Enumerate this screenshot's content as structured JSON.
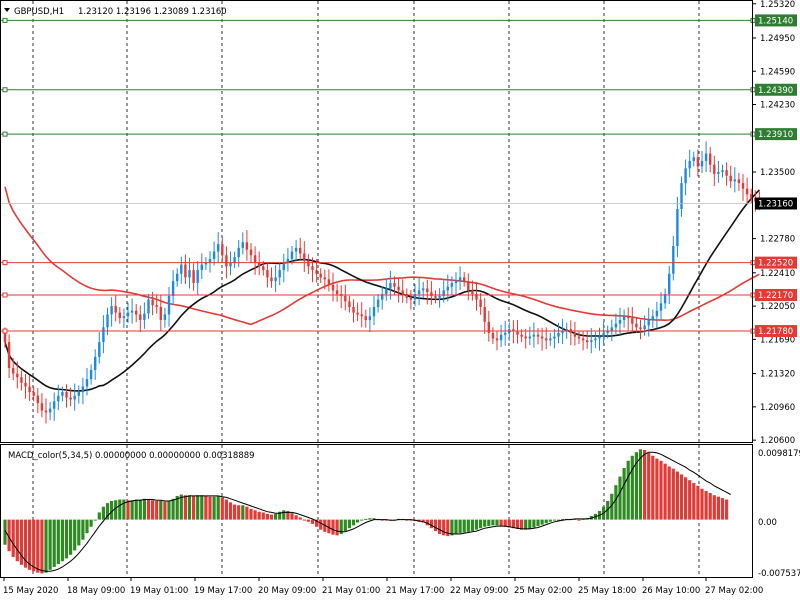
{
  "symbol_header": {
    "symbol": "GBPUSD,H1",
    "ohlc": "1.23120 1.23196 1.23089 1.23160"
  },
  "macd_header": {
    "label": "MACD_color(5,34,5) 0.00000000 0.00000000 0.00318889"
  },
  "colors": {
    "background": "#ffffff",
    "bull": "#1e88e5",
    "bear": "#e53935",
    "green_level": "#2e7d32",
    "red_level": "#e53935",
    "ma_slow": "#e53935",
    "ma_fast": "#111111",
    "hist_up": "#2e8b22",
    "hist_down": "#e53935",
    "signal": "#000000",
    "grid": "#000000"
  },
  "price_axis": {
    "ticks": [
      "1.25320",
      "1.24950",
      "1.24590",
      "1.24230",
      "1.23500",
      "1.22780",
      "1.22410",
      "1.22050",
      "1.21690",
      "1.21320",
      "1.20960",
      "1.20600"
    ]
  },
  "levels": [
    {
      "value": "1.25140",
      "color": "green"
    },
    {
      "value": "1.24390",
      "color": "green"
    },
    {
      "value": "1.23910",
      "color": "green"
    },
    {
      "value": "1.22520",
      "color": "red"
    },
    {
      "value": "1.22170",
      "color": "red"
    },
    {
      "value": "1.21780",
      "color": "red"
    }
  ],
  "current_price": "1.23160",
  "macd_axis": {
    "ticks": [
      "0.0098179",
      "0.00",
      "-0.007537"
    ]
  },
  "time_axis": {
    "labels": [
      "15 May 2020",
      "18 May 09:00",
      "19 May 01:00",
      "19 May 17:00",
      "20 May 09:00",
      "21 May 01:00",
      "21 May 17:00",
      "22 May 09:00",
      "25 May 02:00",
      "25 May 18:00",
      "26 May 10:00",
      "27 May 02:00"
    ]
  },
  "chart_data": [
    {
      "type": "candlestick",
      "title": "GBPUSD,H1",
      "ylim": [
        1.2058,
        1.2535
      ],
      "grid": true,
      "x_labels": [
        "15 May 2020",
        "18 May 09:00",
        "19 May 01:00",
        "19 May 17:00",
        "20 May 09:00",
        "21 May 01:00",
        "21 May 17:00",
        "22 May 09:00",
        "25 May 02:00",
        "25 May 18:00",
        "26 May 10:00",
        "27 May 02:00"
      ],
      "close": [
        1.2166,
        1.2138,
        1.2132,
        1.2128,
        1.2122,
        1.2118,
        1.2112,
        1.2108,
        1.21,
        1.2092,
        1.209,
        1.2094,
        1.2102,
        1.2108,
        1.2112,
        1.2106,
        1.2104,
        1.2108,
        1.2112,
        1.2118,
        1.2126,
        1.2136,
        1.215,
        1.2166,
        1.2182,
        1.2196,
        1.2205,
        1.2198,
        1.2192,
        1.2194,
        1.2198,
        1.22,
        1.2196,
        1.219,
        1.2197,
        1.2212,
        1.2206,
        1.2204,
        1.219,
        1.2196,
        1.2216,
        1.2232,
        1.224,
        1.225,
        1.2236,
        1.2244,
        1.223,
        1.2244,
        1.225,
        1.2252,
        1.2256,
        1.2264,
        1.2272,
        1.226,
        1.2248,
        1.2252,
        1.2258,
        1.2268,
        1.2274,
        1.2266,
        1.226,
        1.2252,
        1.2248,
        1.2244,
        1.2236,
        1.2232,
        1.2236,
        1.2244,
        1.2252,
        1.2256,
        1.2264,
        1.2268,
        1.2262,
        1.2254,
        1.2248,
        1.2244,
        1.224,
        1.2236,
        1.2234,
        1.2228,
        1.2222,
        1.2218,
        1.2216,
        1.221,
        1.2204,
        1.2198,
        1.2196,
        1.2194,
        1.219,
        1.2194,
        1.2204,
        1.2212,
        1.2218,
        1.2224,
        1.223,
        1.2226,
        1.2222,
        1.2218,
        1.2214,
        1.2212,
        1.2218,
        1.2222,
        1.2224,
        1.222,
        1.2216,
        1.2214,
        1.2216,
        1.2222,
        1.2226,
        1.223,
        1.2232,
        1.2236,
        1.2232,
        1.2222,
        1.2218,
        1.2212,
        1.2204,
        1.2188,
        1.2176,
        1.217,
        1.2168,
        1.2174,
        1.2176,
        1.218,
        1.2178,
        1.2174,
        1.2172,
        1.217,
        1.2172,
        1.2174,
        1.2172,
        1.217,
        1.2168,
        1.217,
        1.2172,
        1.2176,
        1.2178,
        1.218,
        1.2176,
        1.2172,
        1.217,
        1.2168,
        1.2166,
        1.2168,
        1.217,
        1.2172,
        1.2176,
        1.2178,
        1.2182,
        1.2186,
        1.219,
        1.2194,
        1.2192,
        1.2186,
        1.2182,
        1.218,
        1.2184,
        1.219,
        1.2194,
        1.22,
        1.2208,
        1.2218,
        1.224,
        1.227,
        1.231,
        1.2338,
        1.2354,
        1.2362,
        1.2366,
        1.2356,
        1.2362,
        1.237,
        1.2358,
        1.2348,
        1.235,
        1.2352,
        1.2346,
        1.234,
        1.2342,
        1.2338,
        1.2332,
        1.2326,
        1.2322,
        1.2318,
        1.2316
      ]
    },
    {
      "type": "bar",
      "title": "MACD_color(5,34,5)",
      "ylim": [
        -0.008,
        0.0104
      ],
      "histogram": [
        -0.0035,
        -0.0044,
        -0.0052,
        -0.0058,
        -0.0063,
        -0.0067,
        -0.007,
        -0.0072,
        -0.0074,
        -0.0075,
        -0.0074,
        -0.007,
        -0.0066,
        -0.0062,
        -0.0058,
        -0.0054,
        -0.0049,
        -0.0043,
        -0.0036,
        -0.0028,
        -0.0019,
        -0.001,
        0.0,
        0.001,
        0.0018,
        0.0023,
        0.0026,
        0.0027,
        0.0028,
        0.0028,
        0.0027,
        0.0027,
        0.0028,
        0.0028,
        0.0029,
        0.0028,
        0.0027,
        0.0026,
        0.0026,
        0.0025,
        0.0026,
        0.0029,
        0.0033,
        0.0035,
        0.0034,
        0.0034,
        0.0033,
        0.0034,
        0.0034,
        0.0033,
        0.0032,
        0.0032,
        0.0033,
        0.0031,
        0.0028,
        0.0024,
        0.0021,
        0.002,
        0.002,
        0.0018,
        0.0015,
        0.0013,
        0.0011,
        0.001,
        0.0008,
        0.0007,
        0.0008,
        0.0011,
        0.0013,
        0.0012,
        0.0009,
        0.0006,
        0.0003,
        0.0,
        -0.0003,
        -0.0006,
        -0.001,
        -0.0014,
        -0.0017,
        -0.0019,
        -0.0021,
        -0.0022,
        -0.002,
        -0.0016,
        -0.0012,
        -0.0008,
        -0.0004,
        -0.0001,
        0.0001,
        0.0002,
        0.0002,
        0.0001,
        0.0,
        -0.0001,
        -0.0001,
        0.0,
        0.0001,
        0.0001,
        0.0,
        -0.0001,
        -0.0002,
        -0.0003,
        -0.0004,
        -0.0008,
        -0.0012,
        -0.0016,
        -0.002,
        -0.0022,
        -0.0023,
        -0.0022,
        -0.002,
        -0.0019,
        -0.0018,
        -0.0017,
        -0.0016,
        -0.0014,
        -0.0012,
        -0.001,
        -0.0009,
        -0.0008,
        -0.0008,
        -0.0009,
        -0.001,
        -0.0011,
        -0.0012,
        -0.0013,
        -0.0014,
        -0.0014,
        -0.0013,
        -0.0011,
        -0.0009,
        -0.0007,
        -0.0005,
        -0.0003,
        -0.0001,
        0.0,
        0.0001,
        0.0001,
        0.0001,
        0.0001,
        0.0,
        0.0001,
        0.0002,
        0.0005,
        0.0008,
        0.0012,
        0.0018,
        0.0026,
        0.0036,
        0.0048,
        0.006,
        0.0072,
        0.0082,
        0.0089,
        0.0094,
        0.0098,
        0.0097,
        0.0093,
        0.0089,
        0.0085,
        0.0082,
        0.0078,
        0.0074,
        0.0071,
        0.0067,
        0.0063,
        0.0059,
        0.0055,
        0.0051,
        0.0047,
        0.0043,
        0.004,
        0.0037,
        0.0034,
        0.0032,
        0.003,
        0.0028
      ],
      "signal": [
        -0.0015,
        -0.0025,
        -0.0034,
        -0.0042,
        -0.005,
        -0.0057,
        -0.0062,
        -0.0066,
        -0.0069,
        -0.0071,
        -0.0072,
        -0.0072,
        -0.0071,
        -0.0069,
        -0.0066,
        -0.0062,
        -0.0058,
        -0.0053,
        -0.0047,
        -0.004,
        -0.0033,
        -0.0025,
        -0.0017,
        -0.0009,
        -0.0002,
        0.0005,
        0.0011,
        0.0016,
        0.002,
        0.0023,
        0.0025,
        0.0026,
        0.0027,
        0.0027,
        0.0028,
        0.0028,
        0.0028,
        0.0027,
        0.0027,
        0.0026,
        0.0026,
        0.0027,
        0.0029,
        0.0031,
        0.0032,
        0.0033,
        0.0033,
        0.0033,
        0.0033,
        0.0033,
        0.0033,
        0.0033,
        0.0033,
        0.0032,
        0.0031,
        0.0029,
        0.0027,
        0.0025,
        0.0023,
        0.0021,
        0.0019,
        0.0017,
        0.0015,
        0.0013,
        0.0011,
        0.001,
        0.0009,
        0.0009,
        0.001,
        0.001,
        0.001,
        0.0009,
        0.0007,
        0.0005,
        0.0003,
        0.0001,
        -0.0002,
        -0.0005,
        -0.0008,
        -0.0011,
        -0.0014,
        -0.0016,
        -0.0017,
        -0.0017,
        -0.0015,
        -0.0013,
        -0.001,
        -0.0007,
        -0.0004,
        -0.0002,
        0.0,
        0.0,
        0.0,
        0.0,
        -0.0001,
        -0.0001,
        0.0,
        0.0,
        0.0,
        0.0,
        -0.0001,
        -0.0002,
        -0.0003,
        -0.0005,
        -0.0008,
        -0.0011,
        -0.0014,
        -0.0017,
        -0.0019,
        -0.002,
        -0.002,
        -0.002,
        -0.0019,
        -0.0018,
        -0.0017,
        -0.0016,
        -0.0014,
        -0.0012,
        -0.0011,
        -0.001,
        -0.0009,
        -0.0009,
        -0.0009,
        -0.001,
        -0.0011,
        -0.0012,
        -0.0013,
        -0.0013,
        -0.0013,
        -0.0012,
        -0.0011,
        -0.0009,
        -0.0007,
        -0.0005,
        -0.0003,
        -0.0002,
        -0.0001,
        0.0,
        0.0,
        0.0001,
        0.0001,
        0.0001,
        0.0001,
        0.0002,
        0.0004,
        0.0006,
        0.0009,
        0.0014,
        0.002,
        0.0028,
        0.0038,
        0.0049,
        0.006,
        0.007,
        0.0079,
        0.0086,
        0.0091,
        0.0094,
        0.0094,
        0.0093,
        0.0091,
        0.0088,
        0.0085,
        0.0082,
        0.0079,
        0.0076,
        0.0073,
        0.0069,
        0.0066,
        0.0062,
        0.0058,
        0.0054,
        0.0051,
        0.0047,
        0.0044,
        0.0041,
        0.0038,
        0.0035
      ]
    }
  ]
}
